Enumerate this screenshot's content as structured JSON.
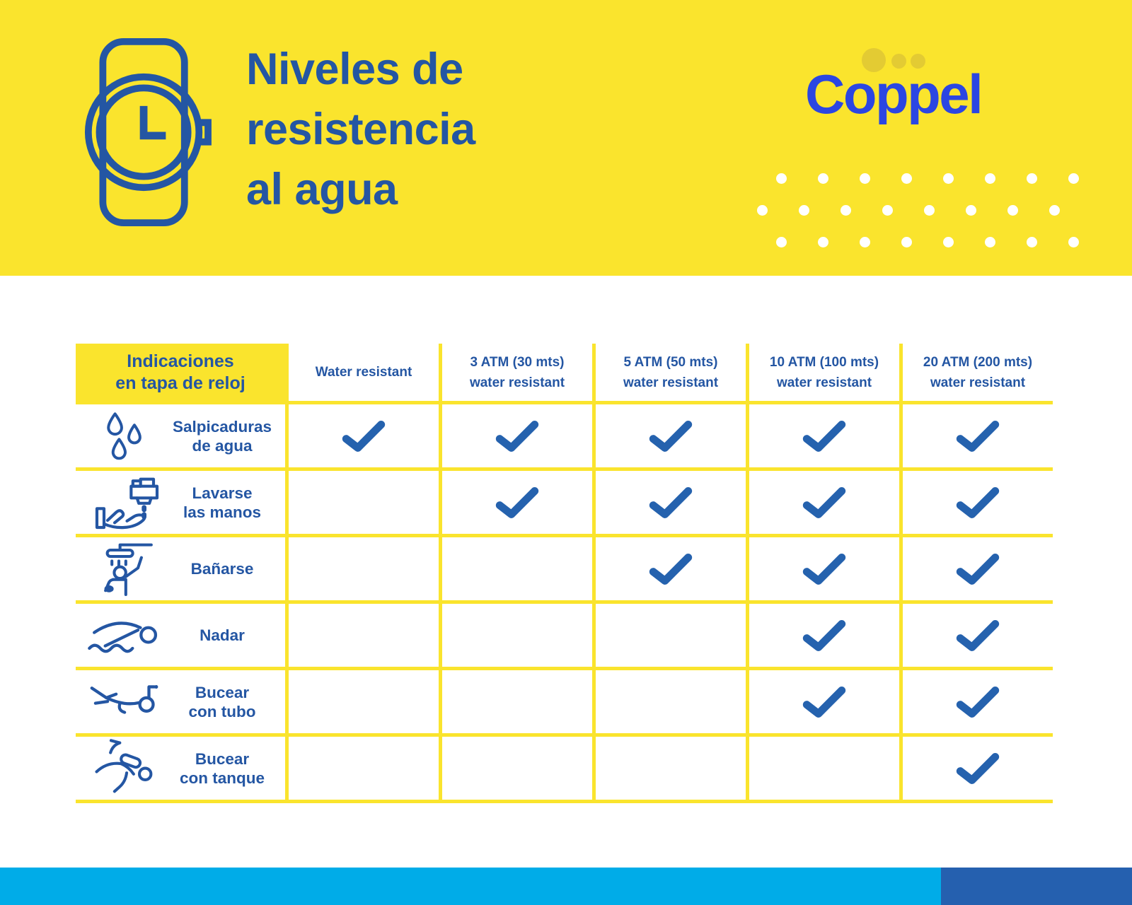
{
  "banner": {
    "title_lines": [
      "Niveles de",
      "resistencia",
      "al agua"
    ],
    "logo": "Coppel"
  },
  "table": {
    "corner_lines": [
      "Indicaciones",
      "en tapa de reloj"
    ],
    "columns": [
      {
        "lines": [
          "Water resistant"
        ]
      },
      {
        "lines": [
          "3 ATM (30 mts)",
          "water resistant"
        ]
      },
      {
        "lines": [
          "5 ATM (50 mts)",
          "water resistant"
        ]
      },
      {
        "lines": [
          "10 ATM (100 mts)",
          "water resistant"
        ]
      },
      {
        "lines": [
          "20 ATM (200 mts)",
          "water resistant"
        ]
      }
    ],
    "rows": [
      {
        "icon": "water-drops-icon",
        "label_lines": [
          "Salpicaduras",
          "de agua"
        ],
        "checks": [
          true,
          true,
          true,
          true,
          true
        ]
      },
      {
        "icon": "hand-wash-icon",
        "label_lines": [
          "Lavarse",
          "las manos"
        ],
        "checks": [
          false,
          true,
          true,
          true,
          true
        ]
      },
      {
        "icon": "shower-icon",
        "label_lines": [
          "Bañarse"
        ],
        "checks": [
          false,
          false,
          true,
          true,
          true
        ]
      },
      {
        "icon": "swimmer-icon",
        "label_lines": [
          "Nadar"
        ],
        "checks": [
          false,
          false,
          false,
          true,
          true
        ]
      },
      {
        "icon": "snorkel-icon",
        "label_lines": [
          "Bucear",
          "con tubo"
        ],
        "checks": [
          false,
          false,
          false,
          true,
          true
        ]
      },
      {
        "icon": "scuba-icon",
        "label_lines": [
          "Bucear",
          "con tanque"
        ],
        "checks": [
          false,
          false,
          false,
          false,
          true
        ]
      }
    ]
  },
  "chart_data": {
    "type": "table",
    "title": "Niveles de resistencia al agua",
    "brand": "Coppel",
    "row_header": "Indicaciones en tapa de reloj",
    "columns": [
      "Water resistant",
      "3 ATM (30 mts) water resistant",
      "5 ATM (50 mts) water resistant",
      "10 ATM (100 mts) water resistant",
      "20 ATM (200 mts) water resistant"
    ],
    "rows": [
      "Salpicaduras de agua",
      "Lavarse las manos",
      "Bañarse",
      "Nadar",
      "Bucear con tubo",
      "Bucear con tanque"
    ],
    "matrix": [
      [
        1,
        1,
        1,
        1,
        1
      ],
      [
        0,
        1,
        1,
        1,
        1
      ],
      [
        0,
        0,
        1,
        1,
        1
      ],
      [
        0,
        0,
        0,
        1,
        1
      ],
      [
        0,
        0,
        0,
        1,
        1
      ],
      [
        0,
        0,
        0,
        0,
        1
      ]
    ],
    "check_symbol": "✓"
  },
  "colors": {
    "brand_yellow": "#FAE42D",
    "logo_dots_yellow": "#E3CB33",
    "text_blue": "#2456A3",
    "logo_blue": "#2B46E2",
    "check_blue": "#2562AE",
    "footer_cyan": "#00ACE8",
    "footer_navy": "#2560AF"
  }
}
